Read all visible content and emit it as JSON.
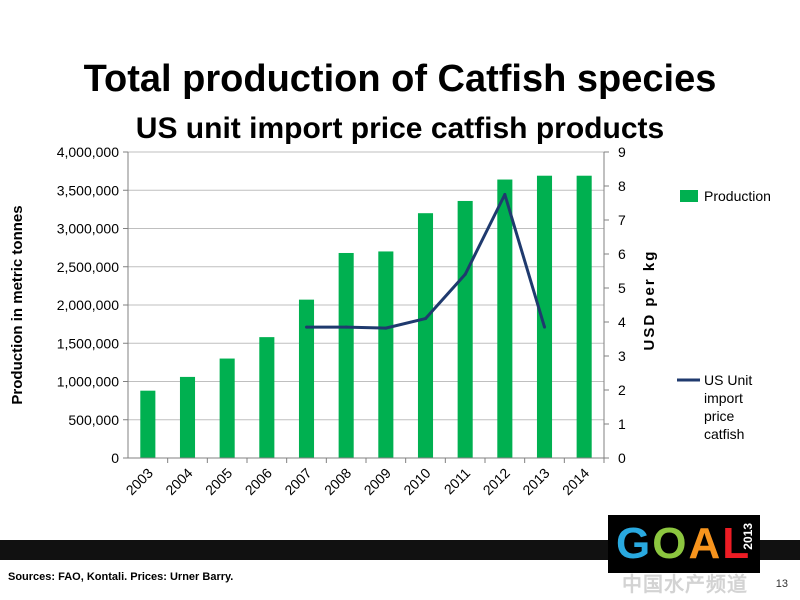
{
  "title": "Total production of Catfish species",
  "subtitle": "US unit import price catfish products",
  "footer": {
    "sources": "Sources: FAO, Kontali. Prices: Urner Barry.",
    "page_number": "13"
  },
  "logo": {
    "g": "G",
    "o": "O",
    "a": "A",
    "l": "L",
    "year": "2013"
  },
  "watermark": "中国水产频道",
  "colors": {
    "bar": "#00b050",
    "line": "#1f3a6e",
    "grid": "#bfbfbf"
  },
  "chart_data": {
    "type": "bar",
    "categories": [
      "2003",
      "2004",
      "2005",
      "2006",
      "2007",
      "2008",
      "2009",
      "2010",
      "2011",
      "2012",
      "2013",
      "2014"
    ],
    "series": [
      {
        "name": "Production",
        "type": "bar",
        "axis": "left",
        "values": [
          880000,
          1060000,
          1300000,
          1580000,
          2070000,
          2680000,
          2700000,
          3200000,
          3360000,
          3640000,
          3690000,
          3690000
        ]
      },
      {
        "name": "US Unit import price catfish",
        "type": "line",
        "axis": "right",
        "values": [
          null,
          null,
          null,
          null,
          3.85,
          3.85,
          3.82,
          4.1,
          5.4,
          7.75,
          3.85,
          null
        ]
      }
    ],
    "ylabel": "Production in metric tonnes",
    "y2label": "USD per kg",
    "ylim": [
      0,
      4000000
    ],
    "y2lim": [
      0,
      9
    ],
    "yticks": [
      "0",
      "500,000",
      "1,000,000",
      "1,500,000",
      "2,000,000",
      "2,500,000",
      "3,000,000",
      "3,500,000",
      "4,000,000"
    ],
    "y2ticks": [
      "0",
      "1",
      "2",
      "3",
      "4",
      "5",
      "6",
      "7",
      "8",
      "9"
    ],
    "grid": true,
    "legend_position": "right",
    "legend": {
      "bar_label": "Production",
      "line_label_lines": [
        "US Unit",
        "import",
        "price",
        "catfish"
      ]
    }
  }
}
